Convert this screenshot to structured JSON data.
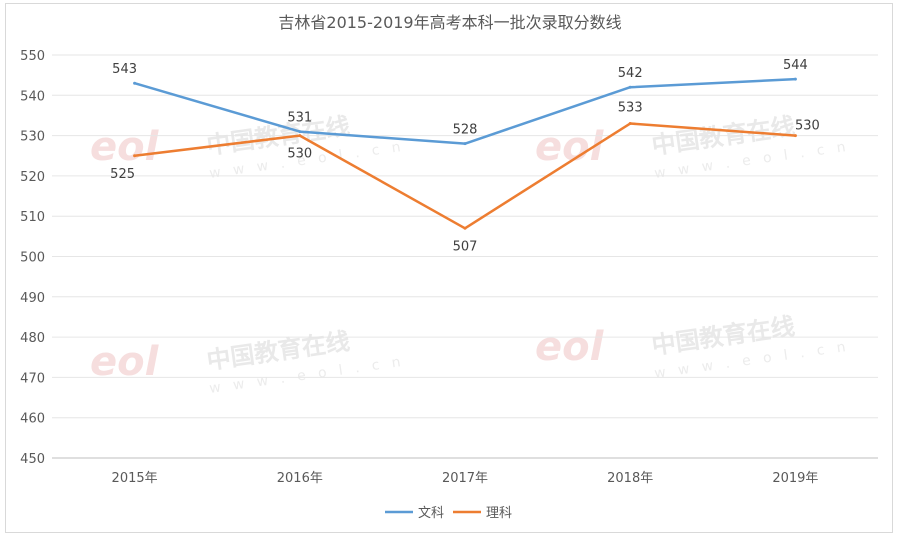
{
  "chart_data": {
    "type": "line",
    "title": "吉林省2015-2019年高考本科一批次录取分数线",
    "categories": [
      "2015年",
      "2016年",
      "2017年",
      "2018年",
      "2019年"
    ],
    "yticks": [
      "450",
      "460",
      "470",
      "480",
      "490",
      "500",
      "510",
      "520",
      "530",
      "540",
      "550"
    ],
    "ylim": [
      450,
      550
    ],
    "grid": true,
    "legend_position": "bottom",
    "series": [
      {
        "name": "文科",
        "color": "#5b9bd5",
        "values": [
          543,
          531,
          528,
          542,
          544
        ],
        "labels": [
          "543",
          "531",
          "528",
          "542",
          "544"
        ]
      },
      {
        "name": "理科",
        "color": "#ed7d31",
        "values": [
          525,
          530,
          507,
          533,
          530
        ],
        "labels": [
          "525",
          "530",
          "507",
          "533",
          "530"
        ]
      }
    ]
  },
  "watermark": {
    "logo_text": "eol",
    "cn_text": "中国教育在线",
    "url_text": "w w w . e o l . c n"
  }
}
